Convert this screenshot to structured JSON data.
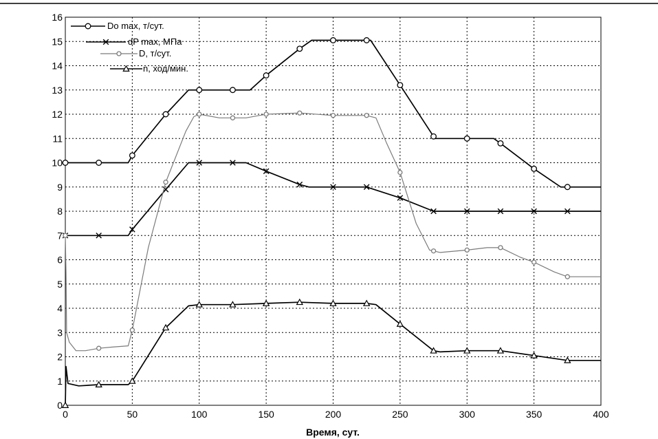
{
  "chart_data": {
    "type": "line",
    "title": "",
    "xlabel": "Время, сут.",
    "ylabel": "",
    "xlim": [
      0,
      400
    ],
    "ylim": [
      0,
      16
    ],
    "x_ticks": [
      0,
      50,
      100,
      150,
      200,
      250,
      300,
      350,
      400
    ],
    "y_ticks": [
      0,
      1,
      2,
      3,
      4,
      5,
      6,
      7,
      8,
      9,
      10,
      11,
      12,
      13,
      14,
      15,
      16
    ],
    "grid": true,
    "legend_position": "top-left",
    "series": [
      {
        "name": "Do max, т/сут.",
        "marker": "circle",
        "color": "#000000",
        "points": [
          [
            0,
            10
          ],
          [
            25,
            10
          ],
          [
            47,
            10
          ],
          [
            50,
            10.3
          ],
          [
            75,
            12
          ],
          [
            92,
            13
          ],
          [
            100,
            13
          ],
          [
            125,
            13
          ],
          [
            138,
            13
          ],
          [
            150,
            13.6
          ],
          [
            175,
            14.7
          ],
          [
            184,
            15.05
          ],
          [
            200,
            15.05
          ],
          [
            225,
            15.05
          ],
          [
            228,
            15.05
          ],
          [
            250,
            13.2
          ],
          [
            276,
            11
          ],
          [
            300,
            11
          ],
          [
            320,
            11
          ],
          [
            325,
            10.8
          ],
          [
            350,
            9.75
          ],
          [
            370,
            9
          ],
          [
            375,
            9
          ],
          [
            400,
            9
          ]
        ],
        "markers_x": [
          0,
          25,
          50,
          75,
          100,
          125,
          150,
          175,
          200,
          225,
          250,
          275,
          300,
          325,
          350,
          375
        ]
      },
      {
        "name": "dP max, МПа",
        "marker": "x",
        "color": "#000000",
        "points": [
          [
            0,
            7
          ],
          [
            25,
            7
          ],
          [
            47,
            7
          ],
          [
            50,
            7.25
          ],
          [
            75,
            8.9
          ],
          [
            92,
            10
          ],
          [
            100,
            10
          ],
          [
            125,
            10
          ],
          [
            135,
            10
          ],
          [
            150,
            9.65
          ],
          [
            175,
            9.1
          ],
          [
            182,
            9
          ],
          [
            200,
            9
          ],
          [
            225,
            9
          ],
          [
            250,
            8.55
          ],
          [
            275,
            8
          ],
          [
            300,
            8
          ],
          [
            325,
            8
          ],
          [
            350,
            8
          ],
          [
            375,
            8
          ],
          [
            400,
            8
          ]
        ],
        "markers_x": [
          0,
          25,
          50,
          75,
          100,
          125,
          150,
          175,
          200,
          225,
          250,
          275,
          300,
          325,
          350,
          375
        ]
      },
      {
        "name": "D, т/сут.",
        "marker": "circle-small",
        "color": "#7a7a7a",
        "points": [
          [
            0,
            7
          ],
          [
            0.5,
            5.5
          ],
          [
            1,
            3
          ],
          [
            3,
            2.6
          ],
          [
            8,
            2.25
          ],
          [
            15,
            2.25
          ],
          [
            25,
            2.35
          ],
          [
            35,
            2.4
          ],
          [
            47,
            2.45
          ],
          [
            50,
            3.1
          ],
          [
            62,
            6.5
          ],
          [
            75,
            9.2
          ],
          [
            90,
            11.3
          ],
          [
            96,
            11.9
          ],
          [
            100,
            12
          ],
          [
            115,
            11.85
          ],
          [
            125,
            11.85
          ],
          [
            135,
            11.85
          ],
          [
            150,
            12
          ],
          [
            175,
            12.05
          ],
          [
            200,
            11.95
          ],
          [
            220,
            11.95
          ],
          [
            225,
            11.95
          ],
          [
            232,
            11.85
          ],
          [
            240,
            10.8
          ],
          [
            250,
            9.6
          ],
          [
            262,
            7.5
          ],
          [
            272,
            6.4
          ],
          [
            280,
            6.3
          ],
          [
            300,
            6.4
          ],
          [
            315,
            6.5
          ],
          [
            325,
            6.5
          ],
          [
            340,
            6.1
          ],
          [
            350,
            5.9
          ],
          [
            365,
            5.5
          ],
          [
            375,
            5.3
          ],
          [
            400,
            5.3
          ]
        ],
        "markers_x": [
          0,
          25,
          50,
          75,
          100,
          125,
          150,
          175,
          200,
          225,
          250,
          275,
          300,
          325,
          350,
          375
        ]
      },
      {
        "name": "n, ход/мин.",
        "marker": "triangle",
        "color": "#000000",
        "points": [
          [
            0,
            0
          ],
          [
            0.5,
            1.6
          ],
          [
            2,
            0.9
          ],
          [
            10,
            0.8
          ],
          [
            25,
            0.85
          ],
          [
            47,
            0.85
          ],
          [
            50,
            1.0
          ],
          [
            75,
            3.2
          ],
          [
            92,
            4.1
          ],
          [
            100,
            4.15
          ],
          [
            125,
            4.15
          ],
          [
            150,
            4.2
          ],
          [
            175,
            4.25
          ],
          [
            200,
            4.2
          ],
          [
            225,
            4.2
          ],
          [
            232,
            4.15
          ],
          [
            250,
            3.35
          ],
          [
            275,
            2.25
          ],
          [
            280,
            2.2
          ],
          [
            300,
            2.25
          ],
          [
            325,
            2.25
          ],
          [
            350,
            2.05
          ],
          [
            375,
            1.85
          ],
          [
            385,
            1.85
          ],
          [
            400,
            1.85
          ]
        ],
        "markers_x": [
          0,
          25,
          50,
          75,
          100,
          125,
          150,
          175,
          200,
          225,
          250,
          275,
          300,
          325,
          350,
          375
        ]
      }
    ]
  }
}
